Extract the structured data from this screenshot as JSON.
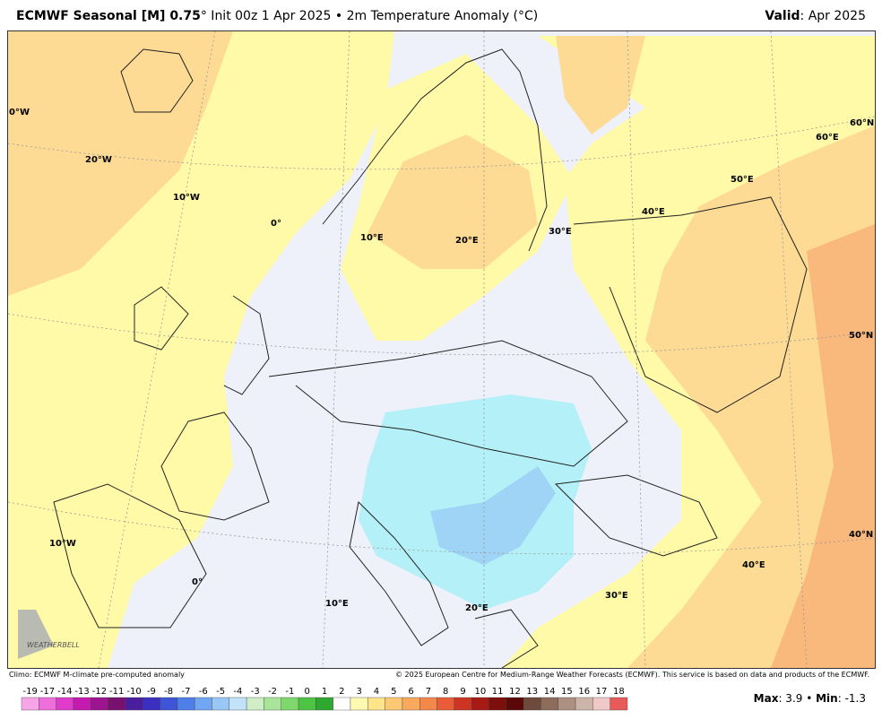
{
  "header": {
    "title_bold": "ECMWF Seasonal [M] 0.75",
    "title_rest": "° Init 00z 1 Apr 2025 • 2m Temperature Anomaly (°C)",
    "valid_label": "Valid",
    "valid_text": ": Apr 2025"
  },
  "map": {
    "grid_labels": [
      "0°W",
      "20°W",
      "10°W",
      "0°",
      "10°E",
      "20°E",
      "30°E",
      "40°E",
      "50°E",
      "60°E",
      "60°N",
      "50°N",
      "40°N",
      "10°W",
      "0°",
      "10°E",
      "20°E",
      "30°E",
      "40°E"
    ],
    "logo": "WEATHERBELL"
  },
  "footer": {
    "climo": "Climo: ECMWF M-climate pre-computed anomaly",
    "copyright": "© 2025 European Centre for Medium-Range Weather Forecasts (ECMWF). This service is based on data and products of the ECMWF."
  },
  "colorbar": {
    "ticks": [
      -19,
      -17,
      -14,
      -13,
      -12,
      -11,
      -10,
      -9,
      -8,
      -7,
      -6,
      -5,
      -4,
      -3,
      -2,
      -1,
      0,
      1,
      2,
      3,
      4,
      5,
      6,
      7,
      8,
      9,
      10,
      11,
      12,
      13,
      14,
      15,
      16,
      17,
      18
    ],
    "colors": [
      "#f6a6e6",
      "#ee6fdc",
      "#e03ccc",
      "#c41ab0",
      "#9c1490",
      "#781070",
      "#4b1ea0",
      "#3a2fc0",
      "#3f55d8",
      "#4f7ee8",
      "#70a6f2",
      "#98c8f6",
      "#c2e2fa",
      "#cfeec8",
      "#a8e59a",
      "#7fd86c",
      "#4fc444",
      "#2fa830",
      "#ffffff",
      "#fffab0",
      "#fde58a",
      "#fbc874",
      "#f8a95e",
      "#f4874a",
      "#e85d38",
      "#cc3524",
      "#a81a16",
      "#7c0e0c",
      "#5a0808",
      "#6e4a3c",
      "#8e6c5c",
      "#ae9080",
      "#ccb4a8",
      "#f0c8c8",
      "#e85a5a"
    ]
  },
  "stats": {
    "max_label": "Max",
    "max_value": ": 3.9 • ",
    "min_label": "Min",
    "min_value": ": -1.3"
  }
}
